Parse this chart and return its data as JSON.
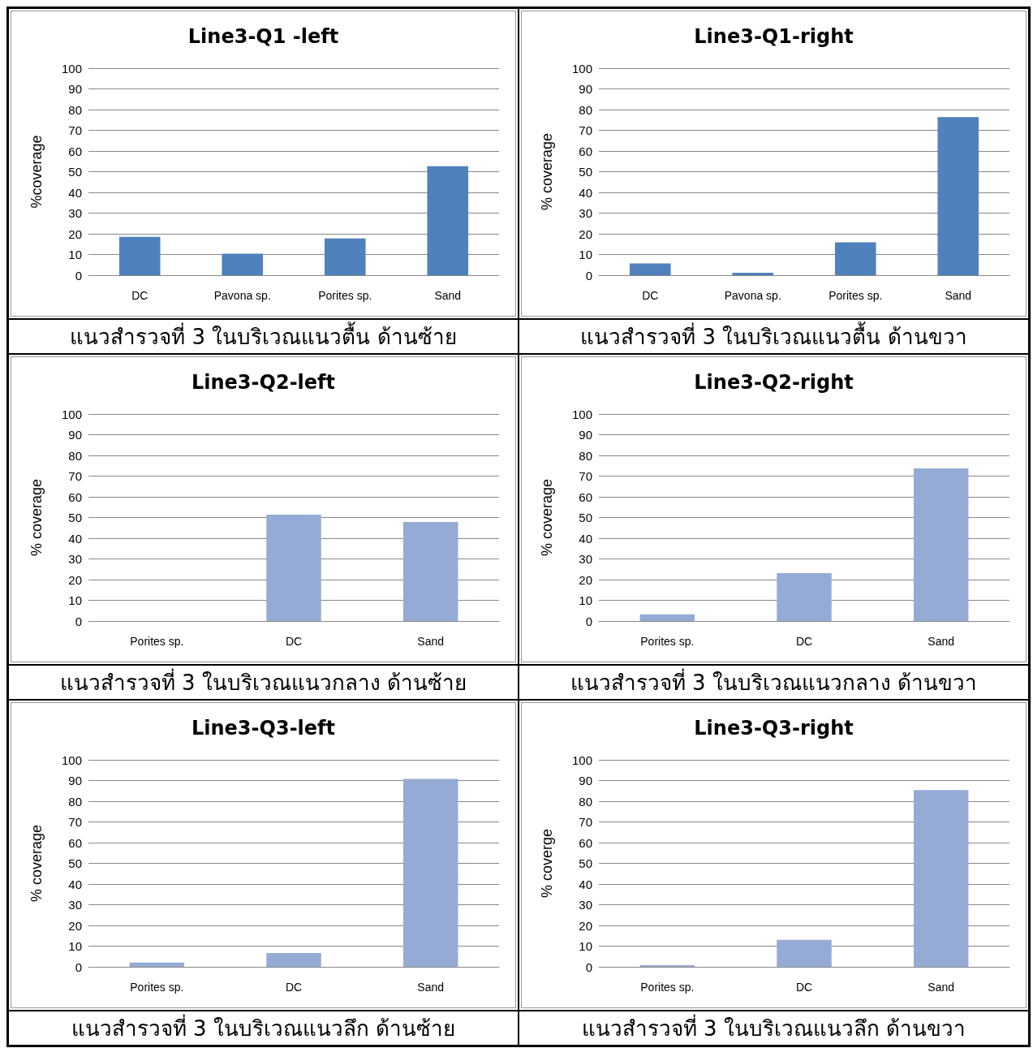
{
  "chart_data": [
    {
      "type": "bar",
      "title": "Line3-Q1 -left",
      "ylabel": "%coverage",
      "categories": [
        "DC",
        "Pavona sp.",
        "Porites sp.",
        "Sand"
      ],
      "values": [
        18.5,
        10.4,
        17.7,
        52.6
      ],
      "color": "#4f81bd",
      "ylim": [
        0,
        100
      ],
      "yticks": [
        0,
        10,
        20,
        30,
        40,
        50,
        60,
        70,
        80,
        90,
        100
      ],
      "grid": "y",
      "annotations": [
        "แนวสำรวจที่ 3 ในบริเวณแนวตื้น ด้านซ้าย"
      ]
    },
    {
      "type": "bar",
      "title": "Line3-Q1-right",
      "ylabel": "% coverage",
      "categories": [
        "DC",
        "Pavona sp.",
        "Porites sp.",
        "Sand"
      ],
      "values": [
        5.7,
        1.2,
        15.9,
        76.4
      ],
      "color": "#4f81bd",
      "ylim": [
        0,
        100
      ],
      "yticks": [
        0,
        10,
        20,
        30,
        40,
        50,
        60,
        70,
        80,
        90,
        100
      ],
      "grid": "y",
      "annotations": [
        "แนวสำรวจที่ 3 ในบริเวณแนวตื้น ด้านขวา"
      ]
    },
    {
      "type": "bar",
      "title": "Line3-Q2-left",
      "ylabel": "% coverage",
      "categories": [
        "Porites sp.",
        "DC",
        "Sand"
      ],
      "values": [
        0,
        51.4,
        47.8
      ],
      "color": "#95abd5",
      "ylim": [
        0,
        100
      ],
      "yticks": [
        0,
        10,
        20,
        30,
        40,
        50,
        60,
        70,
        80,
        90,
        100
      ],
      "grid": "y",
      "annotations": [
        "แนวสำรวจที่ 3 ในบริเวณแนวกลาง ด้านซ้าย"
      ]
    },
    {
      "type": "bar",
      "title": "Line3-Q2-right",
      "ylabel": "% coverage",
      "categories": [
        "Porites sp.",
        "DC",
        "Sand"
      ],
      "values": [
        3.2,
        23.1,
        73.7
      ],
      "color": "#95abd5",
      "ylim": [
        0,
        100
      ],
      "yticks": [
        0,
        10,
        20,
        30,
        40,
        50,
        60,
        70,
        80,
        90,
        100
      ],
      "grid": "y",
      "annotations": [
        "แนวสำรวจที่ 3 ในบริเวณแนวกลาง ด้านขวา"
      ]
    },
    {
      "type": "bar",
      "title": "Line3-Q3-left",
      "ylabel": "% coverage",
      "categories": [
        "Porites sp.",
        "DC",
        "Sand"
      ],
      "values": [
        2.1,
        6.7,
        90.8
      ],
      "color": "#95abd5",
      "ylim": [
        0,
        100
      ],
      "yticks": [
        0,
        10,
        20,
        30,
        40,
        50,
        60,
        70,
        80,
        90,
        100
      ],
      "grid": "y",
      "annotations": [
        "แนวสำรวจที่ 3 ในบริเวณแนวลึก ด้านซ้าย"
      ]
    },
    {
      "type": "bar",
      "title": "Line3-Q3-right",
      "ylabel": "% coverge",
      "categories": [
        "Porites sp.",
        "DC",
        "Sand"
      ],
      "values": [
        0.8,
        13,
        85.4
      ],
      "color": "#95abd5",
      "ylim": [
        0,
        100
      ],
      "yticks": [
        0,
        10,
        20,
        30,
        40,
        50,
        60,
        70,
        80,
        90,
        100
      ],
      "grid": "y",
      "annotations": [
        "แนวสำรวจที่ 3 ในบริเวณแนวลึก ด้านขวา"
      ]
    }
  ]
}
